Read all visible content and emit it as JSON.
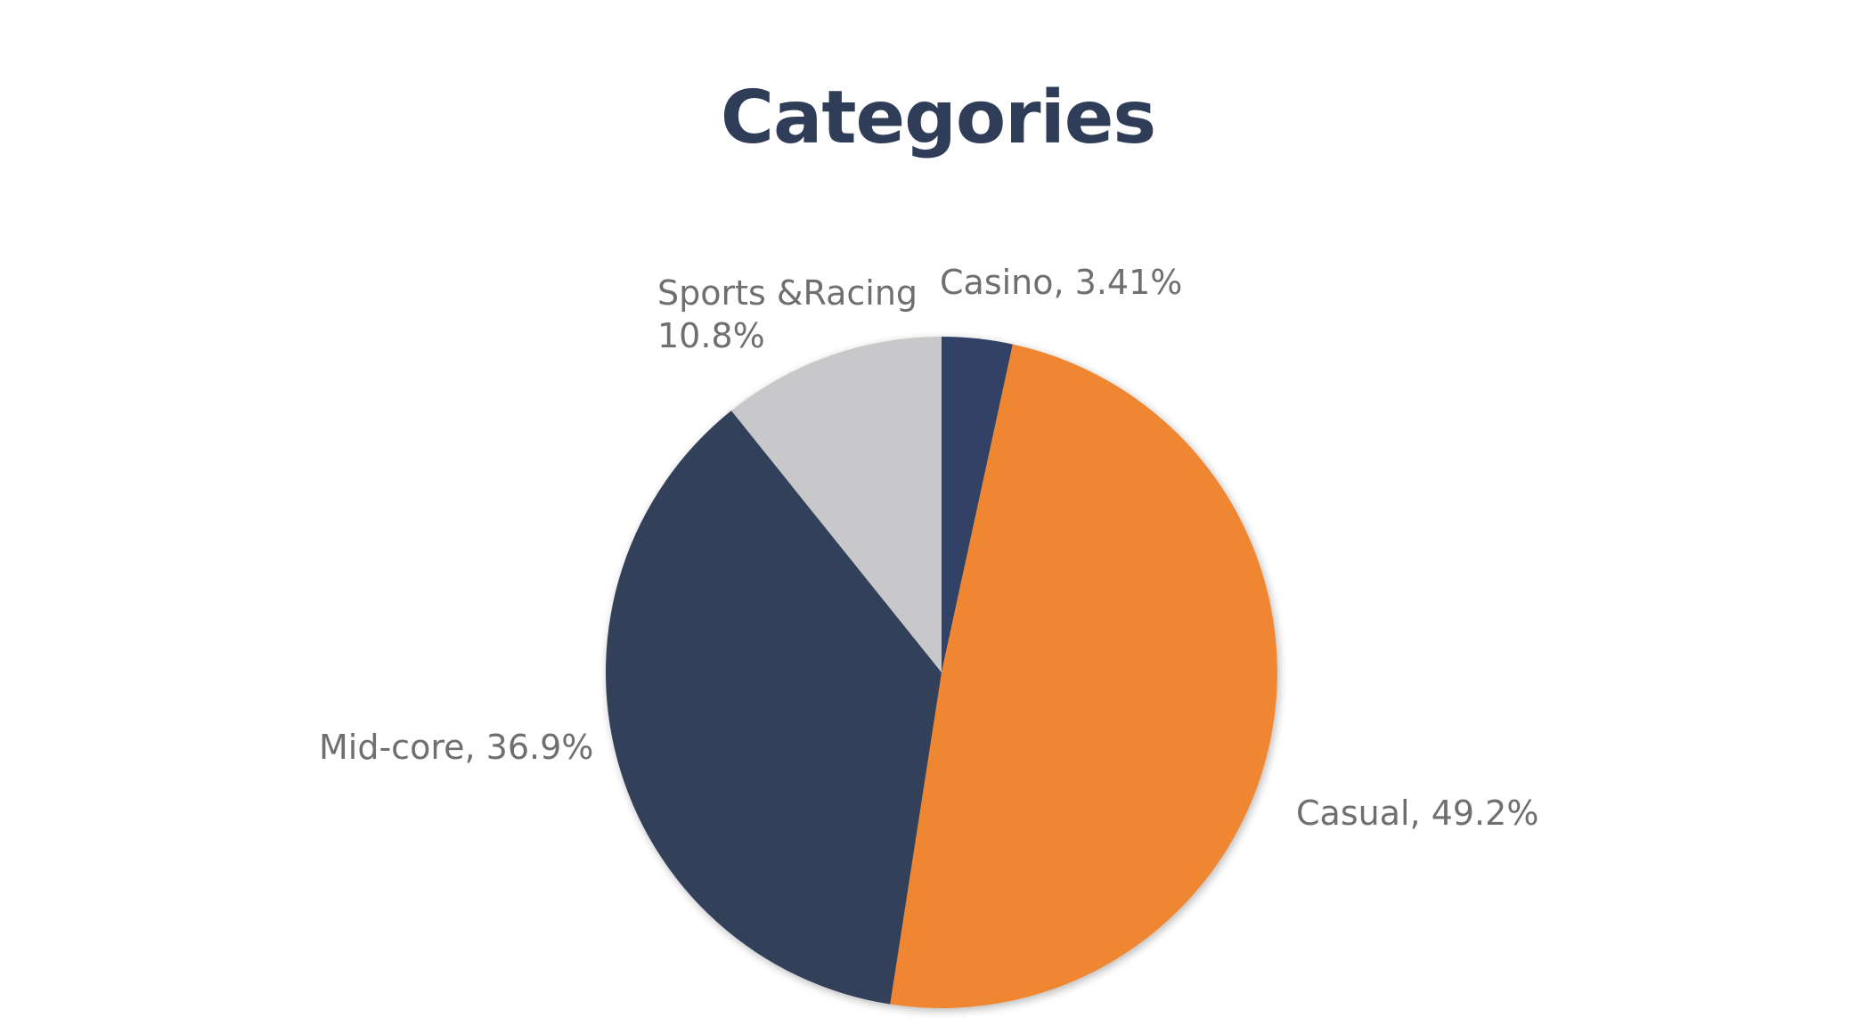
{
  "colors": {
    "title": "#2f3d59",
    "label": "#6f6f6f",
    "background": "#ffffff"
  },
  "chart_data": {
    "type": "pie",
    "title": "Categories",
    "start_angle_deg": 0,
    "direction": "clockwise",
    "legend": "none",
    "slices": [
      {
        "name": "Casino",
        "value": 3.41,
        "label_lines": [
          "Casino, 3.41%"
        ],
        "color": "#334266"
      },
      {
        "name": "Casual",
        "value": 49.2,
        "label_lines": [
          "Casual, 49.2%"
        ],
        "color": "#ef8632"
      },
      {
        "name": "Mid-core",
        "value": 36.9,
        "label_lines": [
          "Mid-core, 36.9%"
        ],
        "color": "#313f5a"
      },
      {
        "name": "Sports &Racing",
        "value": 10.8,
        "label_lines": [
          "Sports &Racing",
          "10.8%"
        ],
        "color": "#c8c8cb"
      }
    ]
  }
}
